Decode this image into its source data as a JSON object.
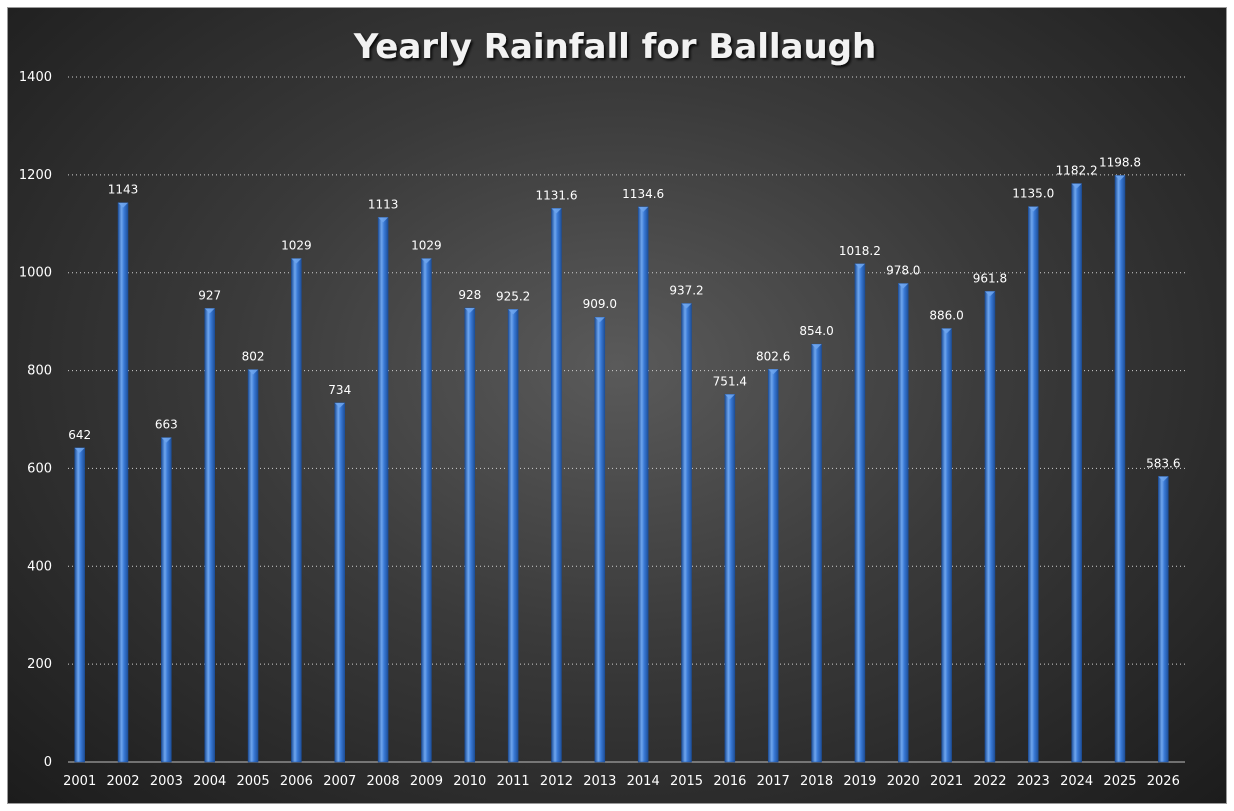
{
  "chart_data": {
    "type": "bar",
    "title": "Yearly Rainfall for Ballaugh",
    "xlabel": "",
    "ylabel": "",
    "ylim": [
      0,
      1400
    ],
    "yticks": [
      "0",
      "200",
      "400",
      "600",
      "800",
      "1000",
      "1200",
      "1400"
    ],
    "grid": true,
    "categories": [
      "2001",
      "2002",
      "2003",
      "2004",
      "2005",
      "2006",
      "2007",
      "2008",
      "2009",
      "2010",
      "2011",
      "2012",
      "2013",
      "2014",
      "2015",
      "2016",
      "2017",
      "2018",
      "2019",
      "2020",
      "2021",
      "2022",
      "2023",
      "2024",
      "2025",
      "2026"
    ],
    "values": [
      642,
      1143,
      663,
      927,
      802,
      1029,
      734,
      1113,
      1029,
      928,
      925.2,
      1131.6,
      909.0,
      1134.6,
      937.2,
      751.4,
      802.6,
      854.0,
      1018.2,
      978.0,
      886.0,
      961.8,
      1135.0,
      1182.2,
      1198.8,
      583.6
    ],
    "data_labels": [
      "642",
      "1143",
      "663",
      "927",
      "802",
      "1029",
      "734",
      "1113",
      "1029",
      "928",
      "925.2",
      "1131.6",
      "909.0",
      "1134.6",
      "937.2",
      "751.4",
      "802.6",
      "854.0",
      "1018.2",
      "978.0",
      "886.0",
      "961.8",
      "1135.0",
      "1182.2",
      "1198.8",
      "583.6"
    ],
    "colors": {
      "bar": "#2f6fc9",
      "bar_light": "#6fa6ee",
      "bar_dark": "#1d4f9a",
      "grid": "#cfcfcf",
      "text": "#ffffff"
    }
  }
}
